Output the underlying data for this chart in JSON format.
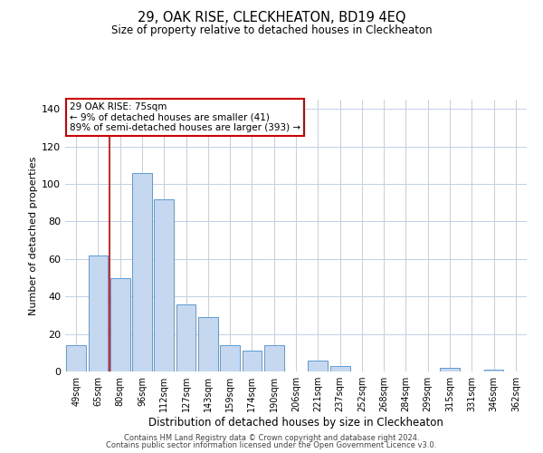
{
  "title": "29, OAK RISE, CLECKHEATON, BD19 4EQ",
  "subtitle": "Size of property relative to detached houses in Cleckheaton",
  "xlabel": "Distribution of detached houses by size in Cleckheaton",
  "ylabel": "Number of detached properties",
  "bar_labels": [
    "49sqm",
    "65sqm",
    "80sqm",
    "96sqm",
    "112sqm",
    "127sqm",
    "143sqm",
    "159sqm",
    "174sqm",
    "190sqm",
    "206sqm",
    "221sqm",
    "237sqm",
    "252sqm",
    "268sqm",
    "284sqm",
    "299sqm",
    "315sqm",
    "331sqm",
    "346sqm",
    "362sqm"
  ],
  "bar_values": [
    14,
    62,
    50,
    106,
    92,
    36,
    29,
    14,
    11,
    14,
    0,
    6,
    3,
    0,
    0,
    0,
    0,
    2,
    0,
    1,
    0
  ],
  "bar_color": "#c5d8f0",
  "bar_edge_color": "#5b9bd5",
  "ylim": [
    0,
    145
  ],
  "yticks": [
    0,
    20,
    40,
    60,
    80,
    100,
    120,
    140
  ],
  "vline_color": "#cc0000",
  "vline_x": 1.5,
  "annotation_title": "29 OAK RISE: 75sqm",
  "annotation_line1": "← 9% of detached houses are smaller (41)",
  "annotation_line2": "89% of semi-detached houses are larger (393) →",
  "annotation_box_color": "#ffffff",
  "annotation_box_edge": "#cc0000",
  "footer1": "Contains HM Land Registry data © Crown copyright and database right 2024.",
  "footer2": "Contains public sector information licensed under the Open Government Licence v3.0.",
  "background_color": "#ffffff",
  "grid_color": "#c0d0e8"
}
